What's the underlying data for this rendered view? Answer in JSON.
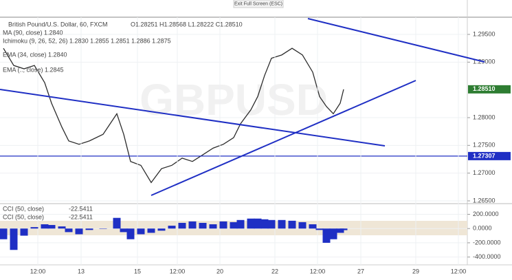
{
  "ui": {
    "exit_label": "Exit Full Screen (ESC)",
    "watermark": "GBPUSD"
  },
  "chart_data": [
    {
      "type": "line",
      "title": "British Pound/U.S. Dollar, 60, FXCM",
      "ohlc": "O1.28251 H1.28568 L1.28222 C1.28510",
      "indicators": [
        "MA (90, close)  1.2840",
        "Ichimoku (9, 26, 52, 26)  1.2830  1.2855  1.2851  1.2886  1.2875",
        "EMA (34, close)  1.2840",
        "EMA (.., close)  1.2845"
      ],
      "x": [
        1,
        4,
        7,
        10,
        13,
        15,
        18,
        20,
        23,
        26,
        30,
        34,
        36,
        38,
        41,
        44,
        47,
        50,
        53,
        56,
        59,
        62,
        65,
        68,
        70,
        73,
        75,
        77,
        79,
        82,
        85,
        88,
        91,
        93,
        95,
        97,
        99,
        100
      ],
      "series": [
        {
          "color": "#2b2b2b",
          "values": [
            1.2925,
            1.2894,
            1.2888,
            1.2894,
            1.2863,
            1.2826,
            1.2783,
            1.2758,
            1.2752,
            1.2758,
            1.277,
            1.2807,
            1.277,
            1.2721,
            1.2714,
            1.2683,
            1.2708,
            1.2714,
            1.2727,
            1.2721,
            1.2733,
            1.2745,
            1.2752,
            1.2764,
            1.2789,
            1.2814,
            1.2838,
            1.2876,
            1.2907,
            1.2913,
            1.2925,
            1.2913,
            1.2882,
            1.2838,
            1.282,
            1.2807,
            1.2826,
            1.2851
          ]
        }
      ],
      "xlim": [
        0,
        136
      ],
      "ylim": [
        1.2645,
        1.2981
      ],
      "yticks": [
        {
          "value": 1.295,
          "label": "1.29500"
        },
        {
          "value": 1.29,
          "label": "1.29000"
        },
        {
          "value": 1.28,
          "label": "1.28000"
        },
        {
          "value": 1.275,
          "label": "1.27500"
        },
        {
          "value": 1.27,
          "label": "1.27000"
        },
        {
          "value": 1.265,
          "label": "1.26500"
        }
      ],
      "last_price": {
        "value": 1.2851,
        "label": "1.28510"
      },
      "hline": {
        "value": 1.27307,
        "label": "1.27307",
        "color": "#1f2fc4"
      },
      "grid": true
    },
    {
      "type": "bar",
      "indicators": [
        "CCI (50, close)",
        "-22.5411",
        "CCI (50, close)",
        "-22.5411"
      ],
      "x": [
        1,
        4,
        7,
        10,
        13,
        15,
        18,
        20,
        23,
        26,
        30,
        34,
        36,
        38,
        41,
        44,
        47,
        50,
        53,
        56,
        59,
        62,
        65,
        68,
        70,
        73,
        75,
        77,
        79,
        82,
        85,
        88,
        91,
        93,
        95,
        97,
        99,
        100
      ],
      "color": "#1f2fc4",
      "values": [
        -150,
        -300,
        -100,
        20,
        60,
        50,
        30,
        -50,
        -80,
        -20,
        0,
        150,
        -50,
        -150,
        -80,
        -60,
        -30,
        40,
        80,
        100,
        80,
        60,
        100,
        90,
        120,
        140,
        140,
        130,
        120,
        120,
        110,
        90,
        60,
        -20,
        -200,
        -150,
        -60,
        -22.5411
      ],
      "xlim": [
        0,
        136
      ],
      "ylim": [
        -510,
        350
      ],
      "yticks": [
        {
          "value": 200,
          "label": "200.0000"
        },
        {
          "value": 0,
          "label": "0.0000"
        },
        {
          "value": -200,
          "label": "-200.0000"
        },
        {
          "value": -400,
          "label": "-400.0000"
        }
      ],
      "xticks": [
        {
          "value": 11,
          "label": "12:00"
        },
        {
          "value": 23.6,
          "label": "13"
        },
        {
          "value": 40,
          "label": "15"
        },
        {
          "value": 51.6,
          "label": "12:00"
        },
        {
          "value": 64,
          "label": "20"
        },
        {
          "value": 80,
          "label": "22"
        },
        {
          "value": 92.4,
          "label": "12:00"
        },
        {
          "value": 105,
          "label": "27"
        },
        {
          "value": 121,
          "label": "29"
        },
        {
          "value": 133.4,
          "label": "12:00"
        }
      ],
      "grid": true
    }
  ]
}
